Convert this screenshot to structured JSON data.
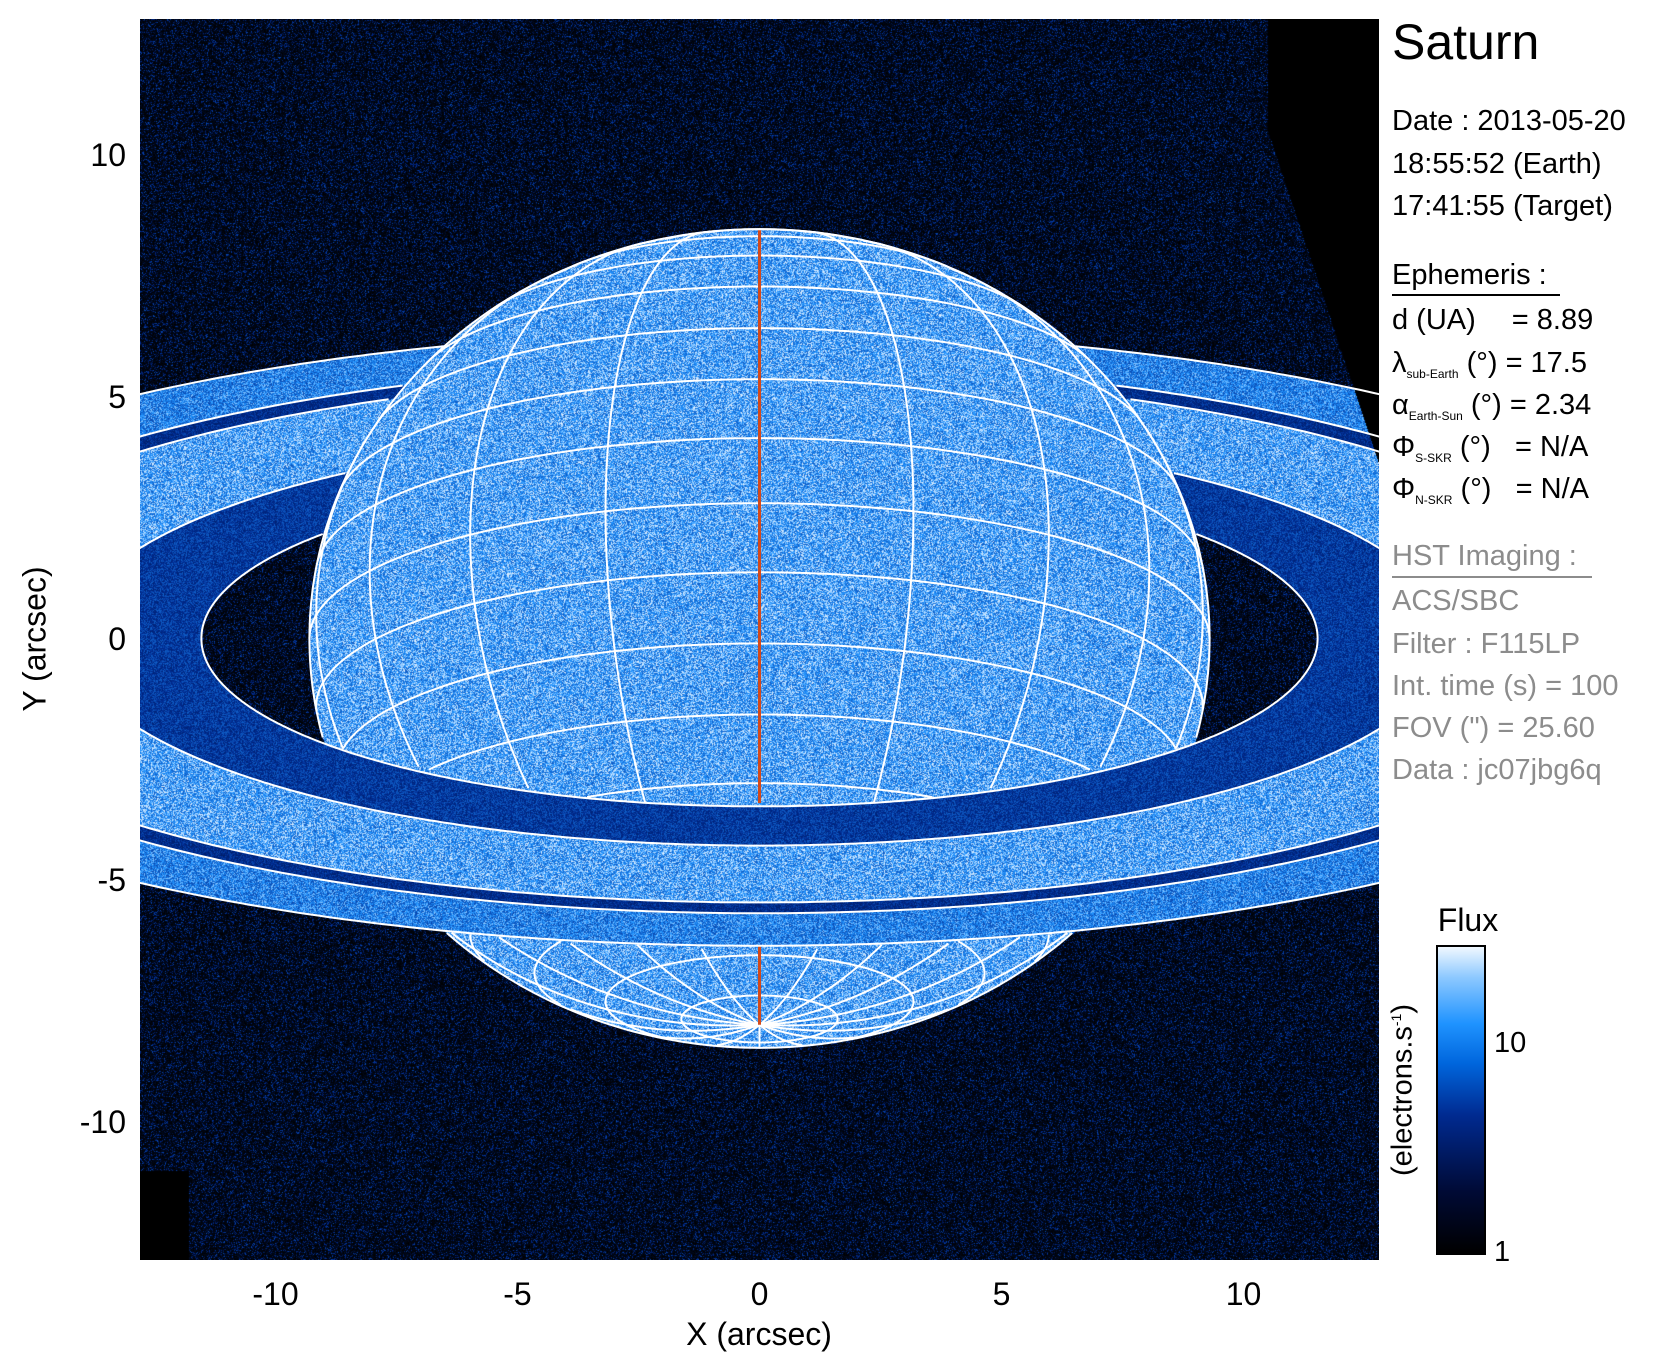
{
  "chart_data": {
    "type": "heatmap",
    "title": "Saturn",
    "xlabel": "X (arcsec)",
    "ylabel": "Y (arcsec)",
    "xlim": [
      -12.8,
      12.8
    ],
    "ylim": [
      -12.8,
      12.8
    ],
    "xticks": [
      "-10",
      "-5",
      "0",
      "5",
      "10"
    ],
    "yticks": [
      "10",
      "5",
      "0",
      "-5",
      "-10"
    ],
    "xtick_values": [
      -10,
      -5,
      0,
      5,
      10
    ],
    "ytick_values": [
      10,
      5,
      0,
      -5,
      -10
    ],
    "grid": false,
    "overlay": "planetographic latitude/longitude grid with ring ellipses; central meridian in red",
    "colors": {
      "grid": "#ffffff",
      "central_meridian": "#d24a1c",
      "background": "#000000"
    },
    "colorbar": {
      "title": "Flux",
      "label": "(electrons.s",
      "label_sup": "-1",
      "label_end": ")",
      "scale": "log",
      "range": [
        1,
        30
      ],
      "ticks": [
        "1",
        "10"
      ],
      "tick_values": [
        1,
        10
      ],
      "colormap": [
        "#000000",
        "#002a90",
        "#1f93ff",
        "#ffffff"
      ]
    }
  },
  "info": {
    "title": "Saturn",
    "date": "Date : 2013-05-20",
    "time_earth": "18:55:52 (Earth)",
    "time_target": "17:41:55 (Target)",
    "ephemeris_header": "Ephemeris :",
    "ephemeris": {
      "d_label": "d (UA)",
      "d_value": "= 8.89",
      "lambda_sym": "λ",
      "lambda_sub": "sub-Earth",
      "lambda_value": "(°) = 17.5",
      "alpha_sym": "α",
      "alpha_sub": "Earth-Sun",
      "alpha_value": "(°) = 2.34",
      "phis_sym": "Φ",
      "phis_sub": "S-SKR",
      "phis_value": "(°)   = N/A",
      "phin_sym": "Φ",
      "phin_sub": "N-SKR",
      "phin_value": "(°)   = N/A"
    },
    "hst_header": "HST Imaging :",
    "instrument": "ACS/SBC",
    "filter": "Filter : F115LP",
    "int_time": "Int. time (s) = 100",
    "fov": "FOV (\") = 25.60",
    "data_id": "Data : jc07jbg6q"
  }
}
